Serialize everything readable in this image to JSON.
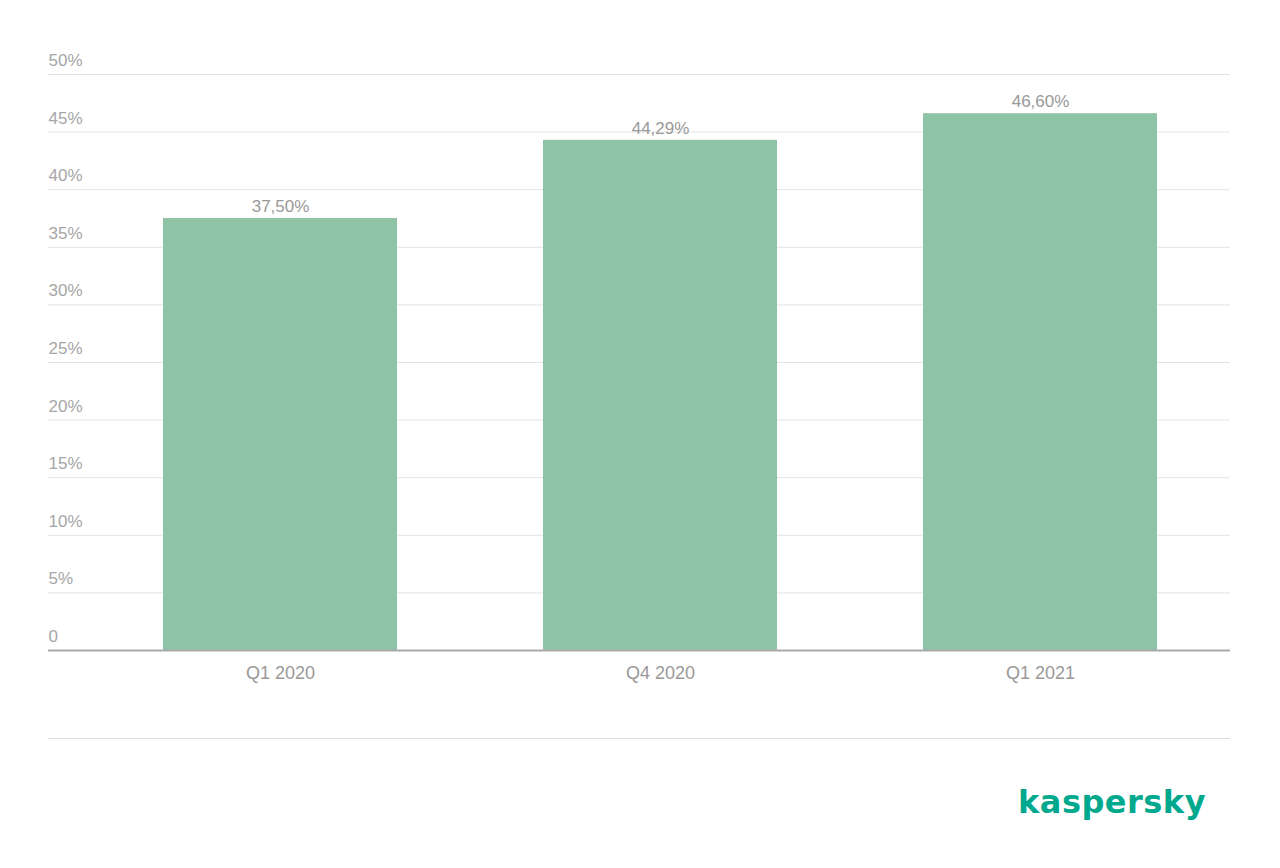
{
  "chart_data": {
    "type": "bar",
    "caption": "kaspersky",
    "categories": [
      "Q1 2020",
      "Q4 2020",
      "Q1 2021"
    ],
    "values": [
      37.5,
      44.29,
      46.6
    ],
    "value_labels": [
      "37,50%",
      "44,29%",
      "46,60%"
    ],
    "data_labels": true,
    "color": "#8fc3a6",
    "ylim": [
      0,
      50
    ],
    "yticks": [
      0,
      {
        "value": 5,
        "label": "5%"
      },
      {
        "value": 10,
        "label": "10%"
      },
      {
        "value": 15,
        "label": "15%"
      },
      {
        "value": 20,
        "label": "20%"
      },
      {
        "value": 25,
        "label": "25%"
      },
      {
        "value": 30,
        "label": "30%"
      },
      {
        "value": 35,
        "label": "35%"
      },
      {
        "value": 40,
        "label": "40%"
      },
      {
        "value": 45,
        "label": "45%"
      },
      {
        "value": 50,
        "label": "50%"
      }
    ],
    "grid": true
  }
}
